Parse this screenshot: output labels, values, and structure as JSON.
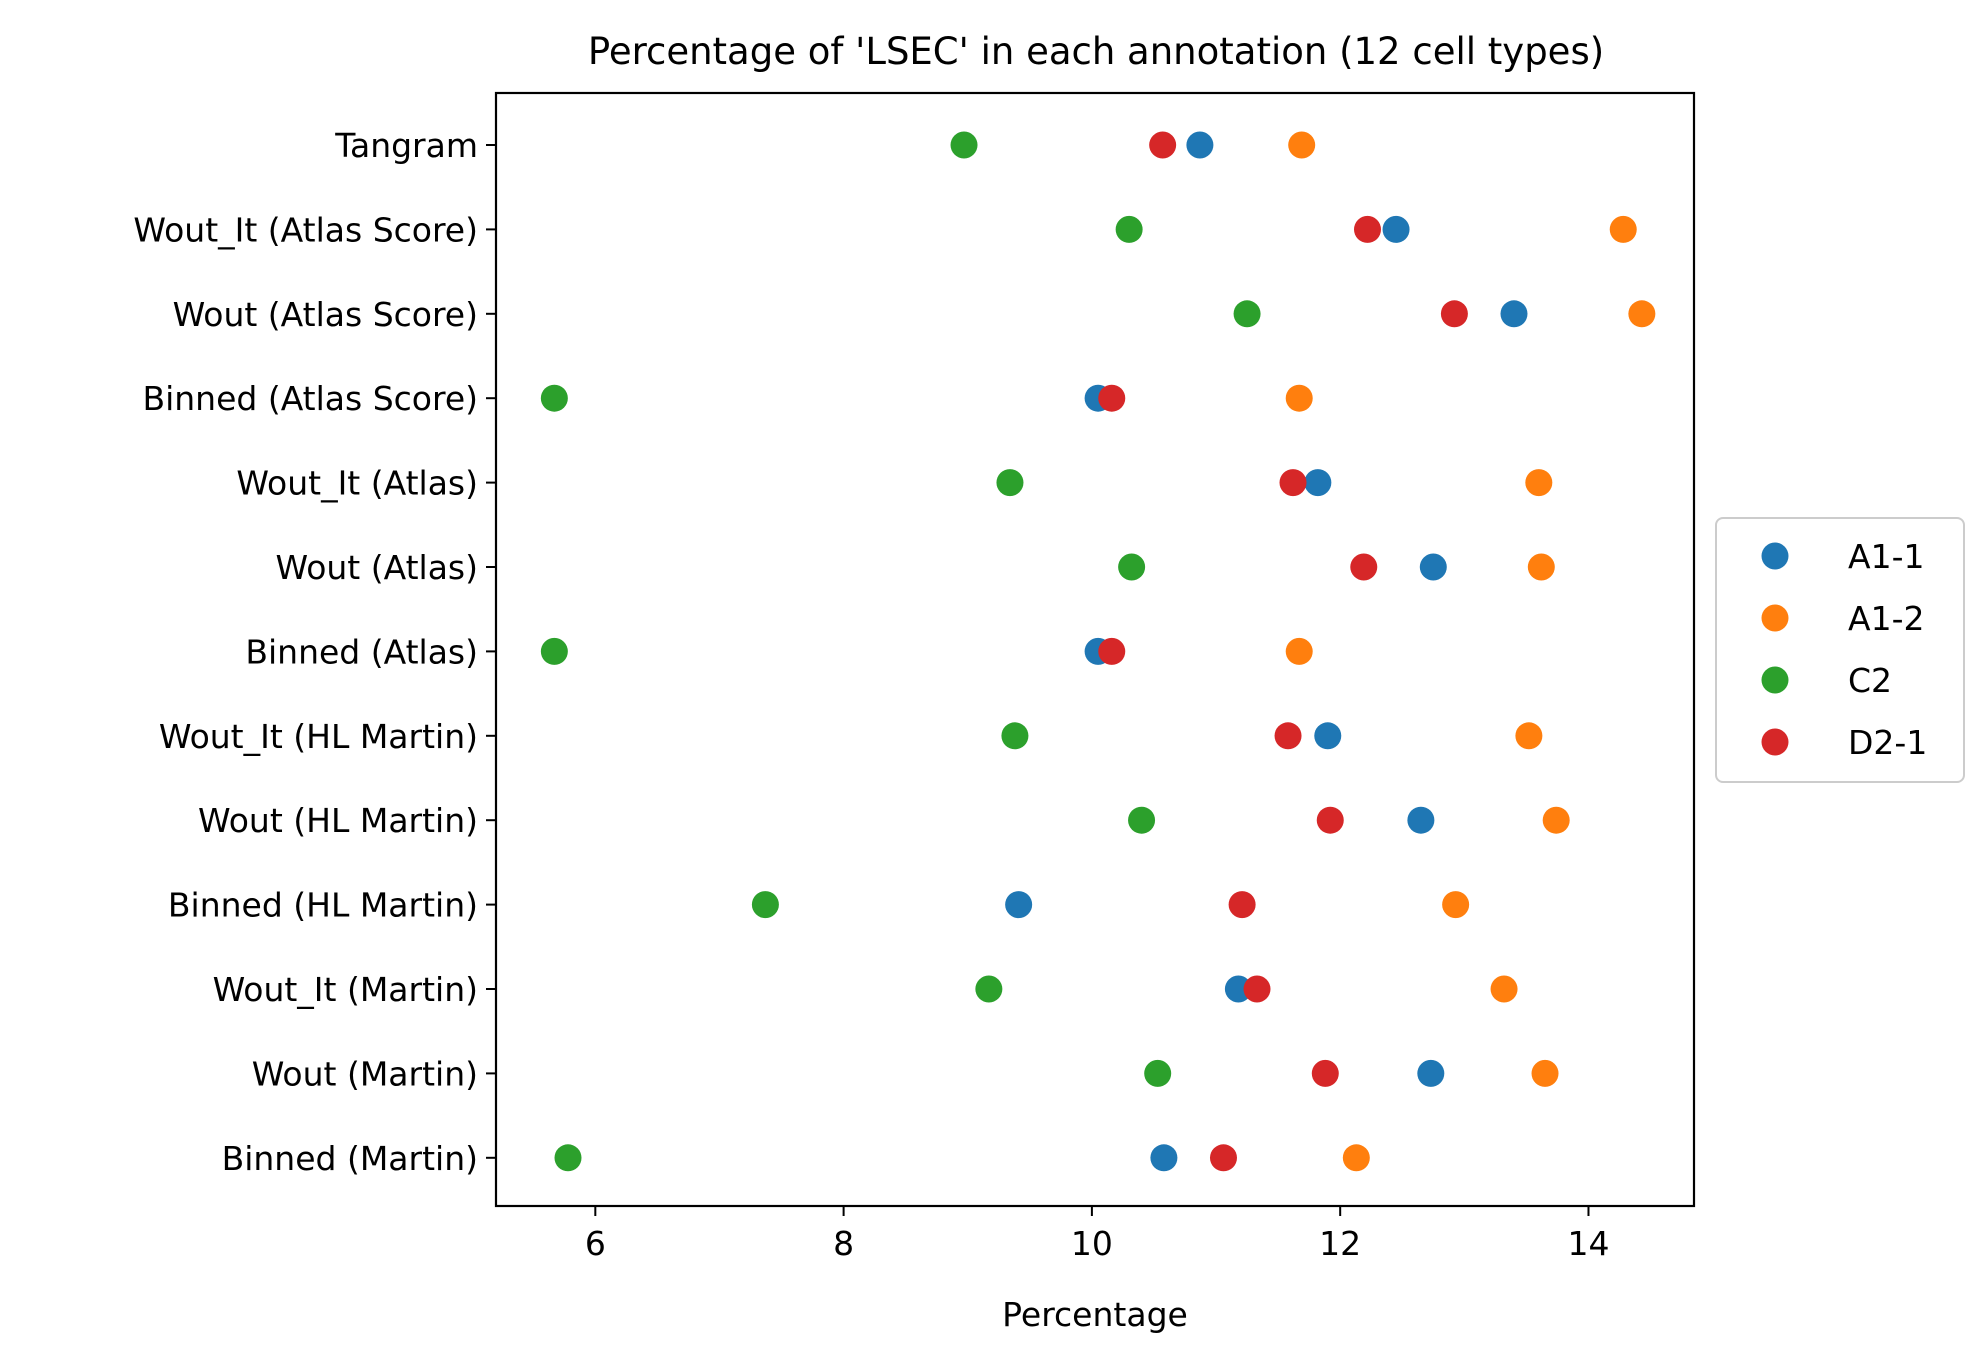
{
  "chart_data": {
    "type": "scatter",
    "title": "Percentage of 'LSEC' in each annotation (12 cell types)",
    "xlabel": "Percentage",
    "ylabel": "",
    "xlim": [
      5.2,
      14.85
    ],
    "xticks": [
      6,
      8,
      10,
      12,
      14
    ],
    "grid": false,
    "legend_position": "center-right, outside plot",
    "categories": [
      "Tangram",
      "Wout_It (Atlas Score)",
      "Wout (Atlas Score)",
      "Binned (Atlas Score)",
      "Wout_It (Atlas)",
      "Wout (Atlas)",
      "Binned (Atlas)",
      "Wout_It (HL Martin)",
      "Wout (HL Martin)",
      "Binned (HL Martin)",
      "Wout_It (Martin)",
      "Wout (Martin)",
      "Binned (Martin)"
    ],
    "series": [
      {
        "name": "A1-1",
        "color": "#1f77b4",
        "values": [
          10.87,
          12.45,
          13.4,
          10.05,
          11.82,
          12.75,
          10.05,
          11.9,
          12.65,
          9.41,
          11.18,
          12.73,
          10.58
        ]
      },
      {
        "name": "A1-2",
        "color": "#ff7f0e",
        "values": [
          11.69,
          14.28,
          14.43,
          11.67,
          13.6,
          13.62,
          11.67,
          13.52,
          13.74,
          12.93,
          13.32,
          13.65,
          12.13
        ]
      },
      {
        "name": "C2",
        "color": "#2ca02c",
        "values": [
          8.97,
          10.3,
          11.25,
          5.67,
          9.34,
          10.32,
          5.67,
          9.38,
          10.4,
          7.37,
          9.17,
          10.53,
          5.78
        ]
      },
      {
        "name": "D2-1",
        "color": "#d62728",
        "values": [
          10.57,
          12.22,
          12.92,
          10.16,
          11.62,
          12.19,
          10.16,
          11.58,
          11.92,
          11.21,
          11.33,
          11.88,
          11.06
        ]
      }
    ]
  }
}
